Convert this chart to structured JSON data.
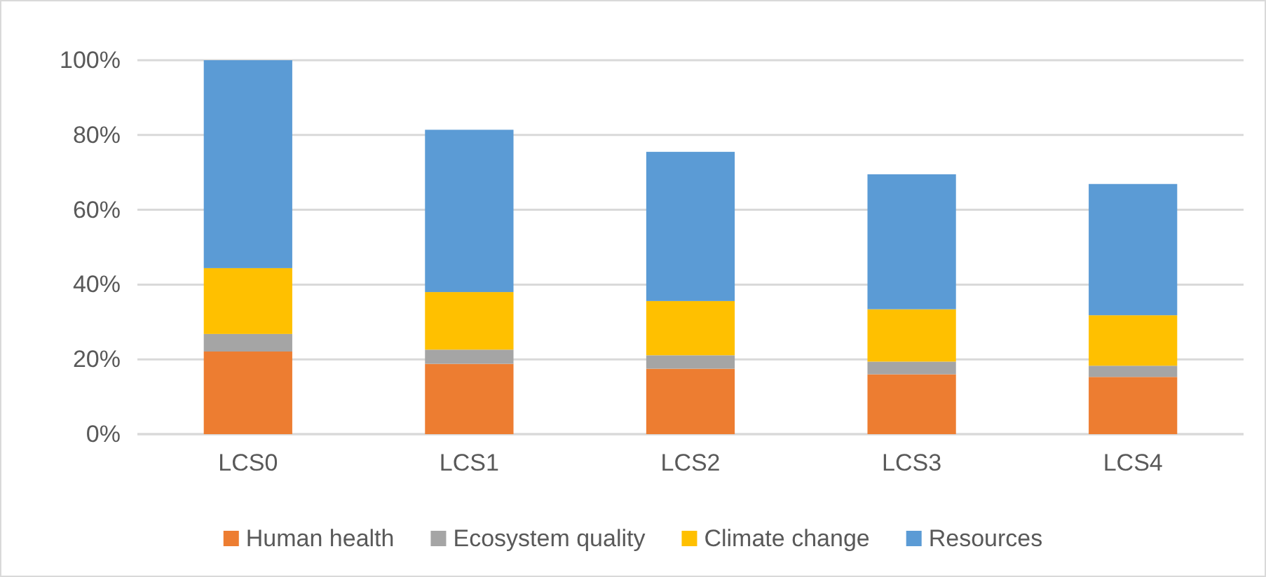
{
  "chart_data": {
    "type": "bar",
    "stacked": true,
    "categories": [
      "LCS0",
      "LCS1",
      "LCS2",
      "LCS3",
      "LCS4"
    ],
    "series": [
      {
        "name": "Human health",
        "color": "#ed7d31",
        "values": [
          22.1,
          18.8,
          17.5,
          16.0,
          15.3
        ]
      },
      {
        "name": "Ecosystem quality",
        "color": "#a5a5a5",
        "values": [
          4.7,
          3.8,
          3.6,
          3.4,
          3.0
        ]
      },
      {
        "name": "Climate change",
        "color": "#ffc000",
        "values": [
          17.6,
          15.4,
          14.5,
          14.0,
          13.5
        ]
      },
      {
        "name": "Resources",
        "color": "#5b9bd5",
        "values": [
          55.6,
          43.4,
          39.9,
          36.1,
          35.1
        ]
      }
    ],
    "ylim": [
      0,
      100
    ],
    "yticks": [
      {
        "value": 0,
        "label": "0%"
      },
      {
        "value": 20,
        "label": "20%"
      },
      {
        "value": 40,
        "label": "40%"
      },
      {
        "value": 60,
        "label": "60%"
      },
      {
        "value": 80,
        "label": "80%"
      },
      {
        "value": 100,
        "label": "100%"
      }
    ],
    "grid": "y",
    "legend": "bottom"
  }
}
